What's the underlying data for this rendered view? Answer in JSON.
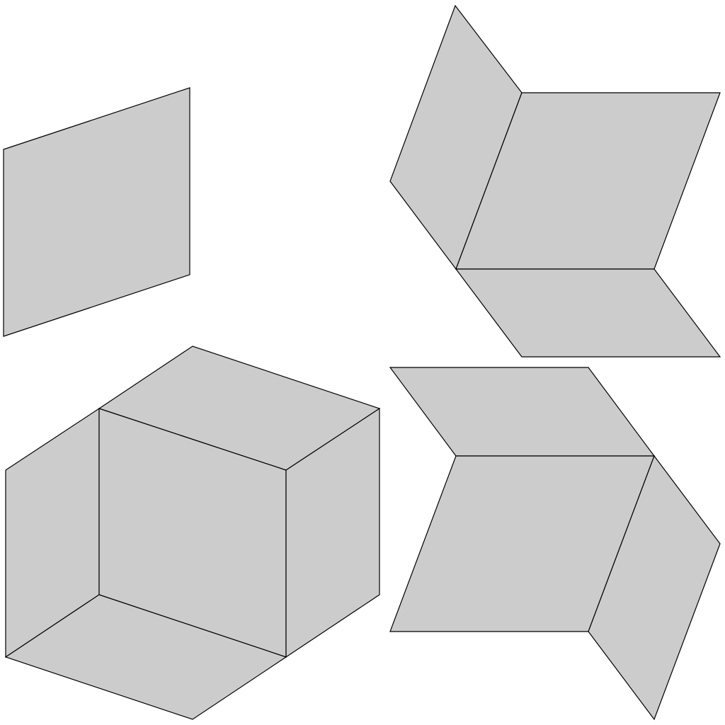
{
  "diagram": {
    "description_labels": [],
    "colors": {
      "face_fill": "#cccccc",
      "edge_stroke": "#000000",
      "background": "#ffffff"
    },
    "figures": [
      {
        "name": "single-rhombus-face",
        "face_count": 1
      },
      {
        "name": "three-rhombi-fold-top-right",
        "face_count": 3
      },
      {
        "name": "cube-hexagon",
        "face_count": 5
      },
      {
        "name": "three-rhombi-fold-bottom-right",
        "face_count": 3
      }
    ]
  }
}
